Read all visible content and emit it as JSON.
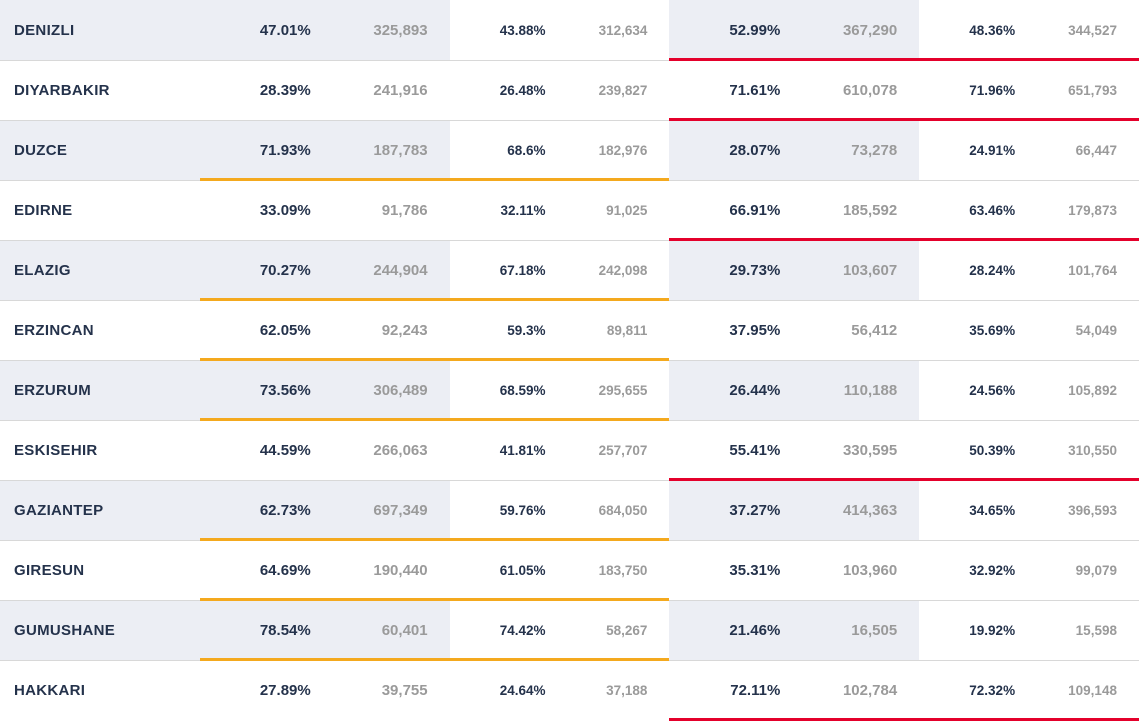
{
  "colors": {
    "orange": "#f4a91e",
    "red": "#e4002b",
    "altRow": "#eceef4",
    "textDark": "#24324b",
    "textLight": "#9a9a9a",
    "border": "#d8d8d8"
  },
  "rows": [
    {
      "province": "DENIZLI",
      "a1_pct": "47.01%",
      "a1_cnt": "325,893",
      "a2_pct": "43.88%",
      "a2_cnt": "312,634",
      "b1_pct": "52.99%",
      "b1_cnt": "367,290",
      "b2_pct": "48.36%",
      "b2_cnt": "344,527",
      "win": "b"
    },
    {
      "province": "DIYARBAKIR",
      "a1_pct": "28.39%",
      "a1_cnt": "241,916",
      "a2_pct": "26.48%",
      "a2_cnt": "239,827",
      "b1_pct": "71.61%",
      "b1_cnt": "610,078",
      "b2_pct": "71.96%",
      "b2_cnt": "651,793",
      "win": "b"
    },
    {
      "province": "DUZCE",
      "a1_pct": "71.93%",
      "a1_cnt": "187,783",
      "a2_pct": "68.6%",
      "a2_cnt": "182,976",
      "b1_pct": "28.07%",
      "b1_cnt": "73,278",
      "b2_pct": "24.91%",
      "b2_cnt": "66,447",
      "win": "a"
    },
    {
      "province": "EDIRNE",
      "a1_pct": "33.09%",
      "a1_cnt": "91,786",
      "a2_pct": "32.11%",
      "a2_cnt": "91,025",
      "b1_pct": "66.91%",
      "b1_cnt": "185,592",
      "b2_pct": "63.46%",
      "b2_cnt": "179,873",
      "win": "b"
    },
    {
      "province": "ELAZIG",
      "a1_pct": "70.27%",
      "a1_cnt": "244,904",
      "a2_pct": "67.18%",
      "a2_cnt": "242,098",
      "b1_pct": "29.73%",
      "b1_cnt": "103,607",
      "b2_pct": "28.24%",
      "b2_cnt": "101,764",
      "win": "a"
    },
    {
      "province": "ERZINCAN",
      "a1_pct": "62.05%",
      "a1_cnt": "92,243",
      "a2_pct": "59.3%",
      "a2_cnt": "89,811",
      "b1_pct": "37.95%",
      "b1_cnt": "56,412",
      "b2_pct": "35.69%",
      "b2_cnt": "54,049",
      "win": "a"
    },
    {
      "province": "ERZURUM",
      "a1_pct": "73.56%",
      "a1_cnt": "306,489",
      "a2_pct": "68.59%",
      "a2_cnt": "295,655",
      "b1_pct": "26.44%",
      "b1_cnt": "110,188",
      "b2_pct": "24.56%",
      "b2_cnt": "105,892",
      "win": "a"
    },
    {
      "province": "ESKISEHIR",
      "a1_pct": "44.59%",
      "a1_cnt": "266,063",
      "a2_pct": "41.81%",
      "a2_cnt": "257,707",
      "b1_pct": "55.41%",
      "b1_cnt": "330,595",
      "b2_pct": "50.39%",
      "b2_cnt": "310,550",
      "win": "b"
    },
    {
      "province": "GAZIANTEP",
      "a1_pct": "62.73%",
      "a1_cnt": "697,349",
      "a2_pct": "59.76%",
      "a2_cnt": "684,050",
      "b1_pct": "37.27%",
      "b1_cnt": "414,363",
      "b2_pct": "34.65%",
      "b2_cnt": "396,593",
      "win": "a"
    },
    {
      "province": "GIRESUN",
      "a1_pct": "64.69%",
      "a1_cnt": "190,440",
      "a2_pct": "61.05%",
      "a2_cnt": "183,750",
      "b1_pct": "35.31%",
      "b1_cnt": "103,960",
      "b2_pct": "32.92%",
      "b2_cnt": "99,079",
      "win": "a"
    },
    {
      "province": "GUMUSHANE",
      "a1_pct": "78.54%",
      "a1_cnt": "60,401",
      "a2_pct": "74.42%",
      "a2_cnt": "58,267",
      "b1_pct": "21.46%",
      "b1_cnt": "16,505",
      "b2_pct": "19.92%",
      "b2_cnt": "15,598",
      "win": "a"
    },
    {
      "province": "HAKKARI",
      "a1_pct": "27.89%",
      "a1_cnt": "39,755",
      "a2_pct": "24.64%",
      "a2_cnt": "37,188",
      "b1_pct": "72.11%",
      "b1_cnt": "102,784",
      "b2_pct": "72.32%",
      "b2_cnt": "109,148",
      "win": "b"
    }
  ]
}
